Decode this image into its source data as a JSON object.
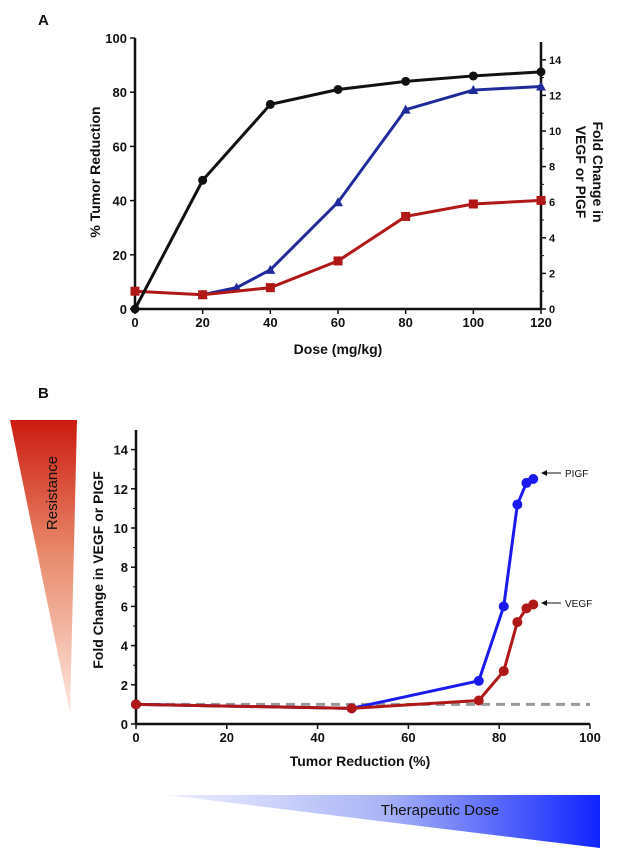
{
  "panel_a": {
    "letter": "A",
    "chart_data": {
      "type": "line",
      "title": "",
      "xlabel": "Dose (mg/kg)",
      "ylabel": "% Tumor Reduction",
      "y2label_line1": "Fold Change in",
      "y2label_line2": "VEGF or PIGF",
      "xlim": [
        0,
        120
      ],
      "ylim": [
        0,
        100
      ],
      "y2lim": [
        0,
        15
      ],
      "xticks": [
        "0",
        "20",
        "40",
        "60",
        "80",
        "100",
        "120"
      ],
      "yticks": [
        "0",
        "20",
        "40",
        "60",
        "80",
        "100"
      ],
      "y2ticks": [
        "0",
        "2",
        "4",
        "6",
        "8",
        "10",
        "12",
        "14"
      ],
      "series": [
        {
          "name": "Tumor Reduction",
          "axis": "left",
          "color": "#111111",
          "marker": "circle",
          "x": [
            0,
            20,
            40,
            60,
            80,
            100,
            120
          ],
          "values": [
            0,
            47.5,
            75.5,
            81,
            84,
            86,
            87.5
          ]
        },
        {
          "name": "PIGF",
          "axis": "right",
          "color": "#1f2a9c",
          "marker": "triangle",
          "x": [
            20,
            30,
            40,
            60,
            80,
            100,
            120
          ],
          "values": [
            0.8,
            1.2,
            2.2,
            6.0,
            11.2,
            12.3,
            12.5
          ]
        },
        {
          "name": "VEGF",
          "axis": "right",
          "color": "#b01818",
          "marker": "square",
          "x": [
            0,
            20,
            40,
            60,
            80,
            100,
            120
          ],
          "values": [
            1.0,
            0.8,
            1.2,
            2.7,
            5.2,
            5.9,
            6.1
          ]
        }
      ]
    }
  },
  "panel_b": {
    "letter": "B",
    "resistance_label": "Resistance",
    "therapeutic_label": "Therapeutic Dose",
    "chart_data": {
      "type": "line",
      "title": "",
      "xlabel": "Tumor Reduction (%)",
      "ylabel": "Fold Change in VEGF or PIGF",
      "xlim": [
        0,
        100
      ],
      "ylim": [
        0,
        15
      ],
      "xticks": [
        "0",
        "20",
        "40",
        "60",
        "80",
        "100"
      ],
      "yticks": [
        "0",
        "2",
        "4",
        "6",
        "8",
        "10",
        "12",
        "14"
      ],
      "baseline": 1,
      "series": [
        {
          "name": "PIGF",
          "color": "#1a1aee",
          "x": [
            0,
            47.5,
            75.5,
            81,
            84,
            86,
            87.5
          ],
          "values": [
            1.0,
            0.8,
            2.2,
            6.0,
            11.2,
            12.3,
            12.5
          ]
        },
        {
          "name": "VEGF",
          "color": "#b01818",
          "x": [
            0,
            47.5,
            75.5,
            81,
            84,
            86,
            87.5
          ],
          "values": [
            1.0,
            0.8,
            1.2,
            2.7,
            5.2,
            5.9,
            6.1
          ]
        }
      ],
      "annotations": [
        "PIGF",
        "VEGF"
      ]
    }
  }
}
